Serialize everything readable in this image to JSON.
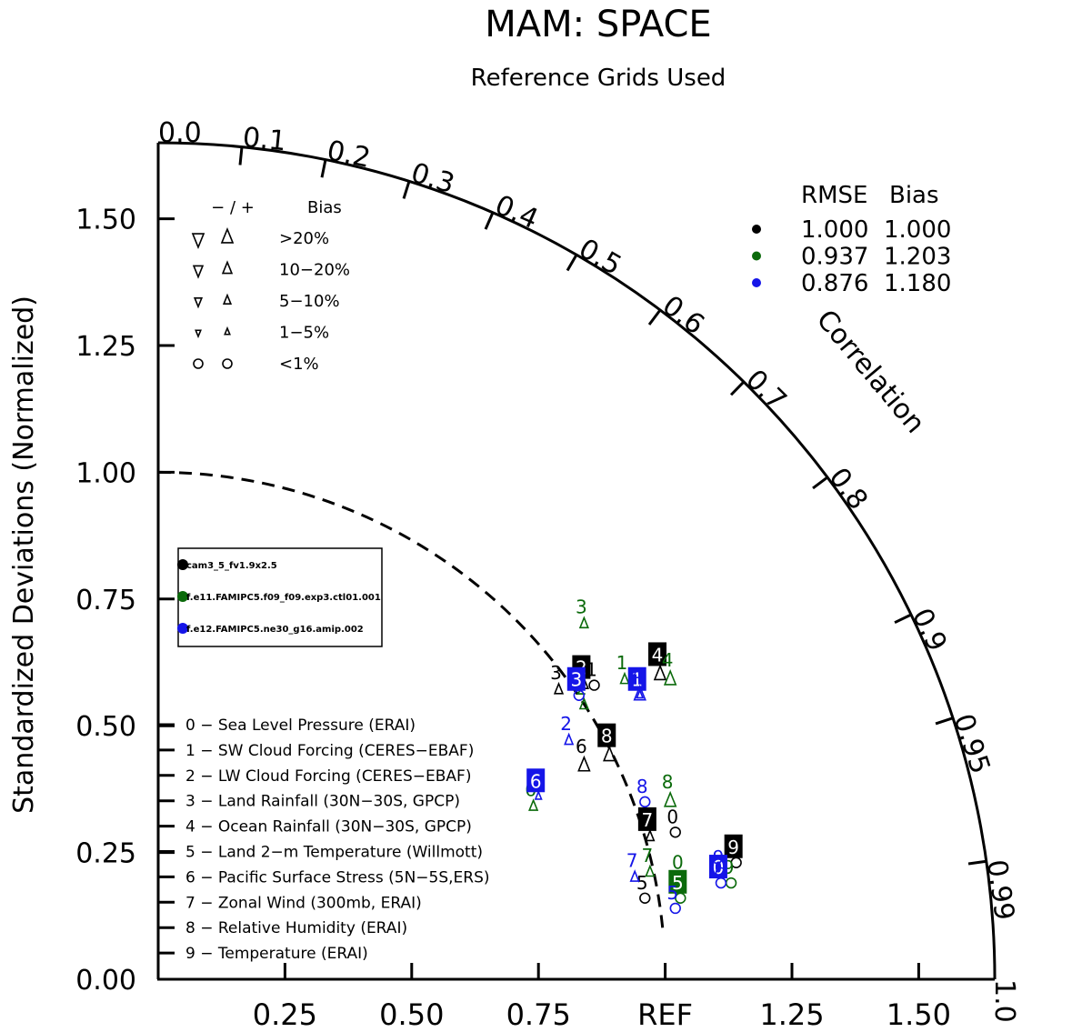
{
  "title": "MAM: SPACE",
  "subtitle": "Reference Grids Used",
  "ylabel": "Standardized Deviations (Normalized)",
  "colors": {
    "black": "#000000",
    "green": "#0b6a0b",
    "blue": "#1515e8"
  },
  "chart_data": {
    "type": "scatter",
    "subtype": "taylor-diagram",
    "std_axis": {
      "range": [
        0,
        1.65
      ],
      "ticks": [
        "0.00",
        "0.25",
        "0.50",
        "0.75",
        "1.00",
        "1.25",
        "1.50"
      ],
      "xticks": [
        "0.25",
        "0.50",
        "0.75",
        "REF",
        "1.25",
        "1.50"
      ]
    },
    "correlation_axis": {
      "label": "Correlation",
      "ticks": [
        "0.0",
        "0.1",
        "0.2",
        "0.3",
        "0.4",
        "0.5",
        "0.6",
        "0.7",
        "0.8",
        "0.9",
        "0.95",
        "0.99",
        "1.0"
      ]
    },
    "bias_legend": {
      "header": [
        "− / +",
        "Bias"
      ],
      "rows": [
        ">20%",
        "10−20%",
        "5−10%",
        "1−5%",
        "<1%"
      ]
    },
    "rmse_table": {
      "header": [
        "RMSE",
        "Bias"
      ],
      "rows": [
        {
          "color": "black",
          "rmse": "1.000",
          "bias": "1.000"
        },
        {
          "color": "green",
          "rmse": "0.937",
          "bias": "1.203"
        },
        {
          "color": "blue",
          "rmse": "0.876",
          "bias": "1.180"
        }
      ]
    },
    "cases": [
      {
        "name": "cam3_5_fv1.9x2.5",
        "color": "black"
      },
      {
        "name": "f.e11.FAMIPC5.f09_f09.exp3.ctl01.001",
        "color": "green"
      },
      {
        "name": "f.e12.FAMIPC5.ne30_g16.amip.002",
        "color": "blue"
      }
    ],
    "variables": [
      "0 − Sea Level Pressure (ERAI)",
      "1 − SW Cloud Forcing (CERES−EBAF)",
      "2 − LW Cloud Forcing (CERES−EBAF)",
      "3 − Land Rainfall (30N−30S, GPCP)",
      "4 − Ocean Rainfall (30N−30S, GPCP)",
      "5 − Land 2−m Temperature (Willmott)",
      "6 − Pacific Surface Stress (5N−5S,ERS)",
      "7 − Zonal Wind (300mb, ERAI)",
      "8 − Relative Humidity (ERAI)",
      "9 − Temperature (ERAI)"
    ],
    "points": [
      {
        "label": "0",
        "series": "black",
        "x": 1.02,
        "y": 0.29,
        "marker": "circle",
        "size": 1,
        "boxed": false
      },
      {
        "label": "1",
        "series": "black",
        "x": 0.86,
        "y": 0.58,
        "marker": "circle",
        "size": 1,
        "boxed": false
      },
      {
        "label": "2",
        "series": "black",
        "x": 0.84,
        "y": 0.58,
        "marker": "tri-up",
        "size": 2,
        "boxed": true
      },
      {
        "label": "3",
        "series": "black",
        "x": 0.79,
        "y": 0.57,
        "marker": "tri-up",
        "size": 2,
        "boxed": false
      },
      {
        "label": "4",
        "series": "black",
        "x": 0.99,
        "y": 0.6,
        "marker": "tri-up",
        "size": 3,
        "boxed": true
      },
      {
        "label": "5",
        "series": "black",
        "x": 0.96,
        "y": 0.16,
        "marker": "circle",
        "size": 1,
        "boxed": false
      },
      {
        "label": "6",
        "series": "black",
        "x": 0.84,
        "y": 0.42,
        "marker": "tri-up",
        "size": 3,
        "boxed": false
      },
      {
        "label": "7",
        "series": "black",
        "x": 0.97,
        "y": 0.28,
        "marker": "tri-up",
        "size": 2,
        "boxed": true
      },
      {
        "label": "8",
        "series": "black",
        "x": 0.89,
        "y": 0.44,
        "marker": "tri-up",
        "size": 3,
        "boxed": true
      },
      {
        "label": "9",
        "series": "black",
        "x": 1.14,
        "y": 0.23,
        "marker": "circle",
        "size": 1,
        "boxed": true
      },
      {
        "label": "0",
        "series": "green",
        "x": 1.03,
        "y": 0.2,
        "marker": "circle",
        "size": 1,
        "boxed": false
      },
      {
        "label": "1",
        "series": "green",
        "x": 0.92,
        "y": 0.59,
        "marker": "tri-up",
        "size": 2,
        "boxed": false
      },
      {
        "label": "2",
        "series": "green",
        "x": 0.84,
        "y": 0.54,
        "marker": "tri-up",
        "size": 2,
        "boxed": false
      },
      {
        "label": "3",
        "series": "green",
        "x": 0.84,
        "y": 0.7,
        "marker": "tri-up",
        "size": 2,
        "boxed": false
      },
      {
        "label": "4",
        "series": "green",
        "x": 1.01,
        "y": 0.59,
        "marker": "tri-up",
        "size": 3,
        "boxed": false
      },
      {
        "label": "5",
        "series": "green",
        "x": 1.03,
        "y": 0.16,
        "marker": "circle",
        "size": 1,
        "boxed": true
      },
      {
        "label": "6",
        "series": "green",
        "x": 0.74,
        "y": 0.34,
        "marker": "tri-up",
        "size": 2,
        "boxed": false
      },
      {
        "label": "7",
        "series": "green",
        "x": 0.97,
        "y": 0.21,
        "marker": "tri-up",
        "size": 2,
        "boxed": false
      },
      {
        "label": "8",
        "series": "green",
        "x": 1.01,
        "y": 0.35,
        "marker": "tri-up",
        "size": 3,
        "boxed": false
      },
      {
        "label": "9",
        "series": "green",
        "x": 1.13,
        "y": 0.19,
        "marker": "circle",
        "size": 1,
        "boxed": false
      },
      {
        "label": "0",
        "series": "blue",
        "x": 1.11,
        "y": 0.19,
        "marker": "circle",
        "size": 1,
        "boxed": true
      },
      {
        "label": "1",
        "series": "blue",
        "x": 0.95,
        "y": 0.56,
        "marker": "tri-up",
        "size": 1,
        "boxed": true
      },
      {
        "label": "2",
        "series": "blue",
        "x": 0.81,
        "y": 0.47,
        "marker": "tri-up",
        "size": 2,
        "boxed": false
      },
      {
        "label": "3",
        "series": "blue",
        "x": 0.83,
        "y": 0.56,
        "marker": "circle",
        "size": 1,
        "boxed": true
      },
      {
        "label": "4",
        "series": "blue",
        "x": 0.95,
        "y": 0.56,
        "marker": "tri-up",
        "size": 3,
        "boxed": false
      },
      {
        "label": "5",
        "series": "blue",
        "x": 1.02,
        "y": 0.14,
        "marker": "circle",
        "size": 1,
        "boxed": false
      },
      {
        "label": "6",
        "series": "blue",
        "x": 0.75,
        "y": 0.36,
        "marker": "tri-up",
        "size": 1,
        "boxed": true
      },
      {
        "label": "7",
        "series": "blue",
        "x": 0.94,
        "y": 0.2,
        "marker": "tri-up",
        "size": 2,
        "boxed": false
      },
      {
        "label": "8",
        "series": "blue",
        "x": 0.96,
        "y": 0.35,
        "marker": "circle",
        "size": 1,
        "boxed": false
      },
      {
        "label": "9",
        "series": "blue",
        "x": 1.11,
        "y": 0.21,
        "marker": "circle",
        "size": 1,
        "boxed": false
      }
    ]
  }
}
